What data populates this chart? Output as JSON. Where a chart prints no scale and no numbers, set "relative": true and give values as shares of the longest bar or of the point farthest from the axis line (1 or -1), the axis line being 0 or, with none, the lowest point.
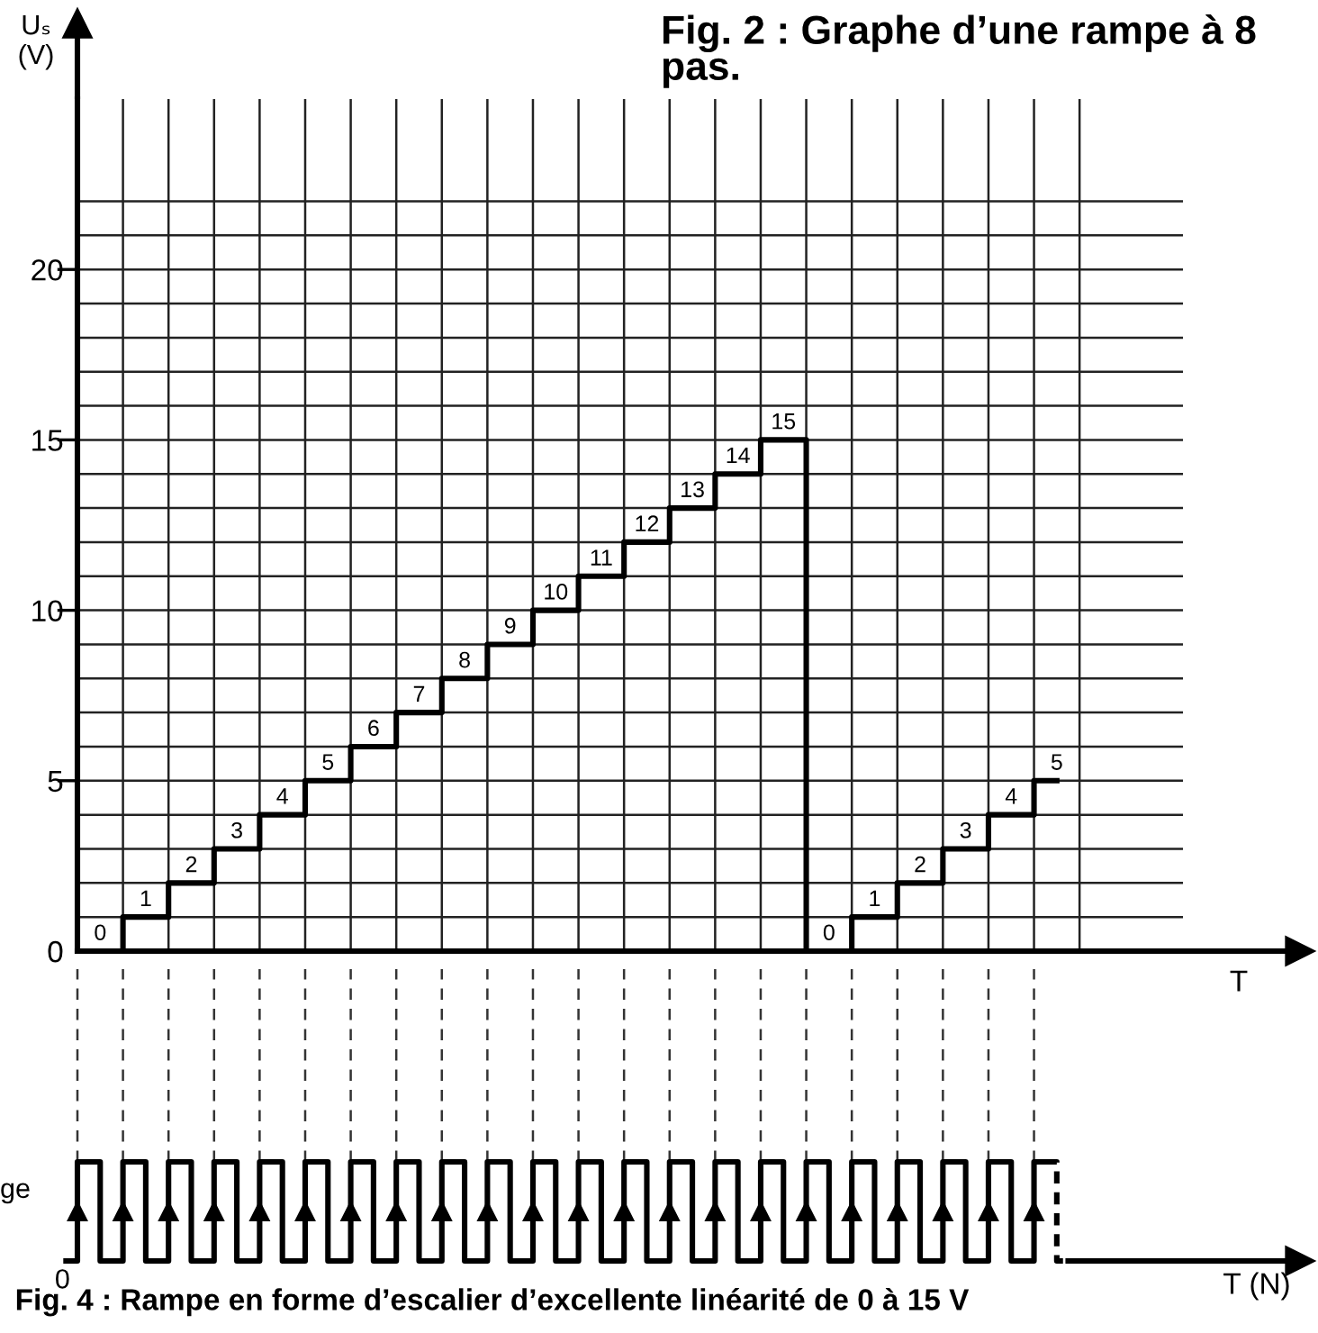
{
  "chart_data": [
    {
      "type": "step",
      "title": "Fig. 2 : Graphe d’une rampe à 8 pas.",
      "xlabel": "T",
      "ylabel": "Uₛ (V)",
      "tick_labels": "y",
      "categories": [
        null,
        null,
        null,
        null,
        null,
        null,
        null,
        null,
        null,
        null,
        null,
        null,
        null,
        null,
        null,
        null,
        null,
        null,
        null,
        null,
        null,
        null
      ],
      "series": [
        {
          "color": "#000000",
          "values": [
            0,
            1,
            2,
            3,
            4,
            5,
            6,
            7,
            8,
            9,
            10,
            11,
            12,
            13,
            14,
            15,
            0,
            1,
            2,
            3,
            4,
            5
          ]
        }
      ],
      "ylim": [
        0,
        25
      ],
      "yticks": [
        0,
        {
          "value": 1,
          "label": null
        },
        {
          "value": 2,
          "label": null
        },
        {
          "value": 3,
          "label": null
        },
        {
          "value": 4,
          "label": null
        },
        5,
        {
          "value": 6,
          "label": null
        },
        {
          "value": 7,
          "label": null
        },
        {
          "value": 8,
          "label": null
        },
        {
          "value": 9,
          "label": null
        },
        10,
        {
          "value": 11,
          "label": null
        },
        {
          "value": 12,
          "label": null
        },
        {
          "value": 13,
          "label": null
        },
        {
          "value": 14,
          "label": null
        },
        15,
        {
          "value": 16,
          "label": null
        },
        {
          "value": 17,
          "label": null
        },
        {
          "value": 18,
          "label": null
        },
        {
          "value": 19,
          "label": null
        },
        20,
        {
          "value": 21,
          "label": null
        },
        {
          "value": 22,
          "label": null
        }
      ],
      "grid": true,
      "data_labels": true
    },
    {
      "type": "step",
      "relative": true,
      "xlabel": "T (N)",
      "ylabel": "ge",
      "grid": "x",
      "categories": [
        null,
        null,
        null,
        null,
        null,
        null,
        null,
        null,
        null,
        null,
        null,
        null,
        null,
        null,
        null,
        null,
        null,
        null,
        null,
        null,
        null,
        null,
        null,
        null,
        null,
        null,
        null,
        null,
        null,
        null,
        null,
        null,
        null,
        null,
        null,
        null,
        null,
        null,
        null,
        null,
        null,
        null,
        null,
        null,
        null
      ],
      "series": [
        {
          "color": "#000000",
          "values": [
            0,
            1,
            0,
            1,
            0,
            1,
            0,
            1,
            0,
            1,
            0,
            1,
            0,
            1,
            0,
            1,
            0,
            1,
            0,
            1,
            0,
            1,
            0,
            1,
            0,
            1,
            0,
            1,
            0,
            1,
            0,
            1,
            0,
            1,
            0,
            1,
            0,
            1,
            0,
            1,
            0,
            1,
            0,
            1,
            null
          ]
        },
        {
          "color": "#000000",
          "line_style": "dashed",
          "values": [
            null,
            null,
            null,
            null,
            null,
            null,
            null,
            null,
            null,
            null,
            null,
            null,
            null,
            null,
            null,
            null,
            null,
            null,
            null,
            null,
            null,
            null,
            null,
            null,
            null,
            null,
            null,
            null,
            null,
            null,
            null,
            null,
            null,
            null,
            null,
            null,
            null,
            null,
            null,
            null,
            null,
            null,
            null,
            1,
            0
          ]
        }
      ],
      "annotations": [
        "0",
        "Fig. 4 : Rampe en forme d’escalier d’excellente linéarité de 0 à 15 V"
      ]
    }
  ]
}
